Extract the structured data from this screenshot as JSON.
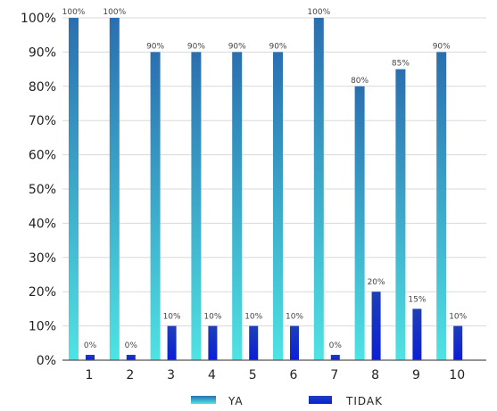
{
  "chart_data": {
    "type": "bar",
    "categories": [
      "1",
      "2",
      "3",
      "4",
      "5",
      "6",
      "7",
      "8",
      "9",
      "10"
    ],
    "series": [
      {
        "name": "YA",
        "values": [
          100,
          100,
          90,
          90,
          90,
          90,
          100,
          80,
          85,
          90
        ],
        "labels": [
          "100%",
          "100%",
          "90%",
          "90%",
          "90%",
          "90%",
          "100%",
          "80%",
          "85%",
          "90%"
        ],
        "color_top": "#2a6fb0",
        "color_bottom": "#4fe3e3"
      },
      {
        "name": "TIDAK",
        "values": [
          0,
          0,
          10,
          10,
          10,
          10,
          0,
          20,
          15,
          10
        ],
        "labels": [
          "0%",
          "0%",
          "10%",
          "10%",
          "10%",
          "10%",
          "0%",
          "20%",
          "15%",
          "10%"
        ],
        "color_top": "#1f3fb8",
        "color_bottom": "#0a1fd6"
      }
    ],
    "yticks": [
      "0%",
      "10%",
      "20%",
      "30%",
      "40%",
      "50%",
      "60%",
      "70%",
      "80%",
      "90%",
      "100%"
    ],
    "ylim": [
      0,
      100
    ],
    "title": "",
    "xlabel": "",
    "ylabel": "",
    "grid": true,
    "legend_position": "bottom"
  }
}
